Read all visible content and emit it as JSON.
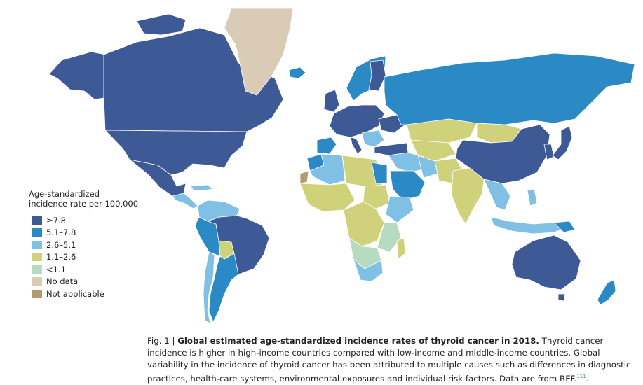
{
  "colors": {
    "ge_7_8": "#3d5a96",
    "c_5_1_7_8": "#2b8ac6",
    "c_2_6_5_1": "#7fc0e4",
    "c_1_1_2_6": "#cfd27a",
    "lt_1_1": "#b6dbc0",
    "no_data": "#d9cbb6",
    "not_applicable": "#b39a72"
  },
  "legend": {
    "title_line1": "Age-standardized",
    "title_line2": "incidence rate per 100,000",
    "items": [
      {
        "label": "≥7.8",
        "color": "#3d5a96"
      },
      {
        "label": "5.1–7.8",
        "color": "#2b8ac6"
      },
      {
        "label": "2.6–5.1",
        "color": "#7fc0e4"
      },
      {
        "label": "1.1–2.6",
        "color": "#cfd27a"
      },
      {
        "label": "<1.1",
        "color": "#b6dbc0"
      },
      {
        "label": "No data",
        "color": "#d9cbb6"
      },
      {
        "label": "Not applicable",
        "color": "#b39a72"
      }
    ]
  },
  "caption": {
    "fig_label": "Fig. 1 | ",
    "title": "Global estimated age-standardized incidence rates of thyroid cancer in 2018.",
    "body": " Thyroid cancer incidence is higher in high-income countries compared with low-income and middle-income countries. Global variability in the incidence of thyroid cancer has been attributed to multiple causes such as differences in diagnostic practices, health-care systems, environmental exposures and individual risk factors. Data are from ",
    "ref_label": "REF.",
    "ref_number": "111",
    "end": "."
  }
}
